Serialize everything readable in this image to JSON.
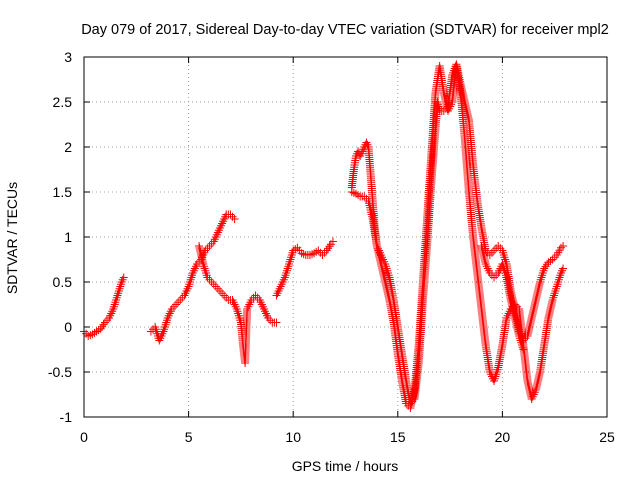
{
  "chart_data": {
    "type": "scatter",
    "title": "Day 079 of 2017, Sidereal Day-to-day VTEC variation (SDTVAR) for receiver mpl2",
    "xlabel": "GPS time / hours",
    "ylabel": "SDTVAR / TECUs",
    "xlim": [
      0,
      25
    ],
    "ylim": [
      -1,
      3
    ],
    "xticks": [
      "0",
      "5",
      "10",
      "15",
      "20",
      "25"
    ],
    "yticks": [
      "-1",
      "-0.5",
      "0",
      "0.5",
      "1",
      "1.5",
      "2",
      "2.5",
      "3"
    ],
    "grid": true,
    "marker": "plus",
    "color": "#ff0000",
    "series": [
      {
        "points": [
          [
            0.0,
            -0.05
          ],
          [
            0.2,
            -0.1
          ],
          [
            0.4,
            -0.08
          ],
          [
            0.6,
            -0.05
          ],
          [
            0.8,
            -0.02
          ],
          [
            1.0,
            0.05
          ],
          [
            1.2,
            0.1
          ],
          [
            1.4,
            0.2
          ],
          [
            1.6,
            0.35
          ],
          [
            1.8,
            0.5
          ],
          [
            1.9,
            0.55
          ]
        ]
      },
      {
        "points": [
          [
            3.2,
            -0.05
          ],
          [
            3.4,
            0.0
          ],
          [
            3.6,
            -0.15
          ],
          [
            3.8,
            -0.05
          ],
          [
            4.0,
            0.1
          ],
          [
            4.2,
            0.2
          ],
          [
            4.4,
            0.25
          ],
          [
            4.6,
            0.3
          ],
          [
            4.8,
            0.35
          ],
          [
            5.0,
            0.45
          ],
          [
            5.2,
            0.6
          ],
          [
            5.4,
            0.7
          ],
          [
            5.6,
            0.75
          ],
          [
            5.8,
            0.85
          ],
          [
            6.0,
            0.9
          ],
          [
            6.2,
            0.95
          ],
          [
            6.4,
            1.05
          ],
          [
            6.6,
            1.15
          ],
          [
            6.8,
            1.25
          ],
          [
            7.0,
            1.25
          ],
          [
            7.2,
            1.2
          ]
        ]
      },
      {
        "points": [
          [
            5.5,
            0.9
          ],
          [
            5.7,
            0.7
          ],
          [
            5.9,
            0.55
          ],
          [
            6.1,
            0.5
          ],
          [
            6.3,
            0.45
          ],
          [
            6.5,
            0.4
          ],
          [
            6.7,
            0.35
          ],
          [
            6.9,
            0.3
          ],
          [
            7.1,
            0.3
          ],
          [
            7.3,
            0.2
          ],
          [
            7.5,
            0.05
          ],
          [
            7.6,
            -0.2
          ],
          [
            7.7,
            -0.4
          ],
          [
            7.8,
            0.2
          ],
          [
            8.0,
            0.3
          ],
          [
            8.2,
            0.35
          ],
          [
            8.4,
            0.3
          ],
          [
            8.6,
            0.2
          ],
          [
            8.8,
            0.1
          ],
          [
            9.0,
            0.05
          ],
          [
            9.2,
            0.05
          ]
        ]
      },
      {
        "points": [
          [
            9.2,
            0.35
          ],
          [
            9.4,
            0.45
          ],
          [
            9.6,
            0.55
          ],
          [
            9.8,
            0.7
          ],
          [
            10.0,
            0.85
          ],
          [
            10.2,
            0.88
          ],
          [
            10.4,
            0.82
          ],
          [
            10.6,
            0.8
          ],
          [
            10.8,
            0.8
          ],
          [
            11.0,
            0.82
          ],
          [
            11.2,
            0.85
          ],
          [
            11.4,
            0.8
          ],
          [
            11.6,
            0.85
          ],
          [
            11.8,
            0.92
          ],
          [
            11.9,
            0.95
          ]
        ]
      },
      {
        "points": [
          [
            12.8,
            1.55
          ],
          [
            12.9,
            1.75
          ],
          [
            13.0,
            1.9
          ],
          [
            13.1,
            1.95
          ],
          [
            13.2,
            1.9
          ],
          [
            13.3,
            1.95
          ],
          [
            13.4,
            2.0
          ],
          [
            13.5,
            2.05
          ],
          [
            13.6,
            2.0
          ],
          [
            13.7,
            1.7
          ],
          [
            13.8,
            1.4
          ],
          [
            13.9,
            1.1
          ],
          [
            14.0,
            0.9
          ],
          [
            14.2,
            0.8
          ],
          [
            14.4,
            0.7
          ],
          [
            14.6,
            0.55
          ],
          [
            14.8,
            0.3
          ],
          [
            15.0,
            0.0
          ],
          [
            15.2,
            -0.3
          ],
          [
            15.4,
            -0.6
          ],
          [
            15.6,
            -0.85
          ],
          [
            15.8,
            -0.8
          ],
          [
            16.0,
            -0.4
          ],
          [
            16.2,
            0.3
          ],
          [
            16.4,
            0.9
          ],
          [
            16.6,
            1.6
          ],
          [
            16.8,
            2.2
          ],
          [
            16.9,
            2.5
          ],
          [
            17.0,
            2.4
          ],
          [
            17.2,
            2.4
          ],
          [
            17.4,
            2.45
          ],
          [
            17.6,
            2.8
          ],
          [
            17.8,
            2.92
          ],
          [
            18.0,
            2.7
          ],
          [
            18.2,
            2.5
          ],
          [
            18.4,
            2.3
          ],
          [
            18.6,
            1.8
          ],
          [
            18.8,
            1.4
          ],
          [
            19.0,
            1.1
          ],
          [
            19.2,
            0.85
          ],
          [
            19.4,
            0.8
          ],
          [
            19.6,
            0.85
          ],
          [
            19.8,
            0.9
          ],
          [
            20.0,
            0.85
          ],
          [
            20.2,
            0.7
          ],
          [
            20.4,
            0.4
          ],
          [
            20.6,
            0.2
          ],
          [
            20.8,
            -0.05
          ],
          [
            21.0,
            -0.15
          ],
          [
            21.2,
            -0.1
          ],
          [
            21.4,
            0.1
          ],
          [
            21.6,
            0.3
          ],
          [
            21.8,
            0.5
          ],
          [
            22.0,
            0.65
          ],
          [
            22.2,
            0.72
          ],
          [
            22.4,
            0.75
          ],
          [
            22.6,
            0.8
          ],
          [
            22.8,
            0.88
          ],
          [
            22.9,
            0.9
          ]
        ]
      },
      {
        "points": [
          [
            12.8,
            1.5
          ],
          [
            13.0,
            1.48
          ],
          [
            13.2,
            1.45
          ],
          [
            13.4,
            1.45
          ],
          [
            13.6,
            1.4
          ],
          [
            13.8,
            1.2
          ],
          [
            14.0,
            0.9
          ],
          [
            14.2,
            0.7
          ],
          [
            14.4,
            0.5
          ],
          [
            14.6,
            0.3
          ],
          [
            14.8,
            0.05
          ],
          [
            15.0,
            -0.3
          ],
          [
            15.2,
            -0.6
          ],
          [
            15.4,
            -0.85
          ],
          [
            15.6,
            -0.9
          ],
          [
            15.8,
            -0.7
          ],
          [
            16.0,
            -0.2
          ],
          [
            16.2,
            0.5
          ],
          [
            16.4,
            1.2
          ],
          [
            16.6,
            1.9
          ],
          [
            16.8,
            2.6
          ],
          [
            17.0,
            2.9
          ],
          [
            17.2,
            2.6
          ],
          [
            17.4,
            2.4
          ],
          [
            17.6,
            2.5
          ],
          [
            17.8,
            2.9
          ],
          [
            18.0,
            2.6
          ],
          [
            18.2,
            2.1
          ],
          [
            18.4,
            1.5
          ],
          [
            18.6,
            1.0
          ],
          [
            18.8,
            0.6
          ],
          [
            19.0,
            0.2
          ],
          [
            19.2,
            -0.2
          ],
          [
            19.4,
            -0.5
          ],
          [
            19.6,
            -0.6
          ],
          [
            19.8,
            -0.45
          ],
          [
            20.0,
            -0.2
          ],
          [
            20.2,
            0.1
          ],
          [
            20.4,
            0.2
          ],
          [
            20.6,
            0.25
          ],
          [
            20.8,
            0.2
          ],
          [
            21.0,
            -0.2
          ],
          [
            21.2,
            -0.6
          ],
          [
            21.4,
            -0.8
          ],
          [
            21.6,
            -0.7
          ],
          [
            21.8,
            -0.5
          ],
          [
            22.0,
            -0.2
          ],
          [
            22.2,
            0.1
          ],
          [
            22.4,
            0.3
          ],
          [
            22.6,
            0.45
          ],
          [
            22.8,
            0.6
          ],
          [
            22.9,
            0.65
          ]
        ]
      },
      {
        "points": [
          [
            19.0,
            0.9
          ],
          [
            19.2,
            0.7
          ],
          [
            19.4,
            0.6
          ],
          [
            19.6,
            0.55
          ],
          [
            19.8,
            0.6
          ],
          [
            20.0,
            0.7
          ],
          [
            20.2,
            0.55
          ],
          [
            20.4,
            0.3
          ],
          [
            20.6,
            0.1
          ],
          [
            20.8,
            -0.1
          ],
          [
            21.0,
            -0.25
          ]
        ]
      }
    ]
  }
}
